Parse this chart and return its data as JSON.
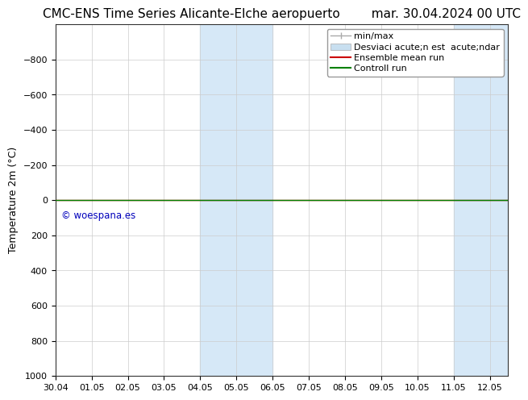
{
  "title": "CMC-ENS Time Series Alicante-Elche aeropuerto        mar. 30.04.2024 00 UTC",
  "ylabel": "Temperature 2m (°C)",
  "xlim_start": 0,
  "xlim_end": 12.5,
  "ylim_bottom": 1000,
  "ylim_top": -1000,
  "yticks": [
    -800,
    -600,
    -400,
    -200,
    0,
    200,
    400,
    600,
    800,
    1000
  ],
  "xtick_labels": [
    "30.04",
    "01.05",
    "02.05",
    "03.05",
    "04.05",
    "05.05",
    "06.05",
    "07.05",
    "08.05",
    "09.05",
    "10.05",
    "11.05",
    "12.05"
  ],
  "xtick_positions": [
    0,
    1,
    2,
    3,
    4,
    5,
    6,
    7,
    8,
    9,
    10,
    11,
    12
  ],
  "shaded_regions": [
    {
      "x_start": 4.0,
      "x_end": 6.0,
      "color": "#d6e8f7"
    },
    {
      "x_start": 11.0,
      "x_end": 12.5,
      "color": "#d6e8f7"
    }
  ],
  "horizontal_line_color_green": "#008000",
  "horizontal_line_color_red": "#cc0000",
  "watermark_text": "© woespana.es",
  "watermark_color": "#0000bb",
  "watermark_data_x": 0.15,
  "watermark_data_y": 60,
  "legend_label_minmax": "min/max",
  "legend_label_std": "Desviaci acute;n est  acute;ndar",
  "legend_label_ensemble": "Ensemble mean run",
  "legend_label_control": "Controll run",
  "legend_color_minmax": "#aaaaaa",
  "legend_color_std": "#c8dff0",
  "legend_color_ensemble": "#cc0000",
  "legend_color_control": "#008000",
  "bg_color": "#ffffff",
  "plot_bg_color": "#ffffff",
  "grid_color": "#cccccc",
  "title_fontsize": 11,
  "ylabel_fontsize": 9,
  "tick_fontsize": 8,
  "legend_fontsize": 8
}
